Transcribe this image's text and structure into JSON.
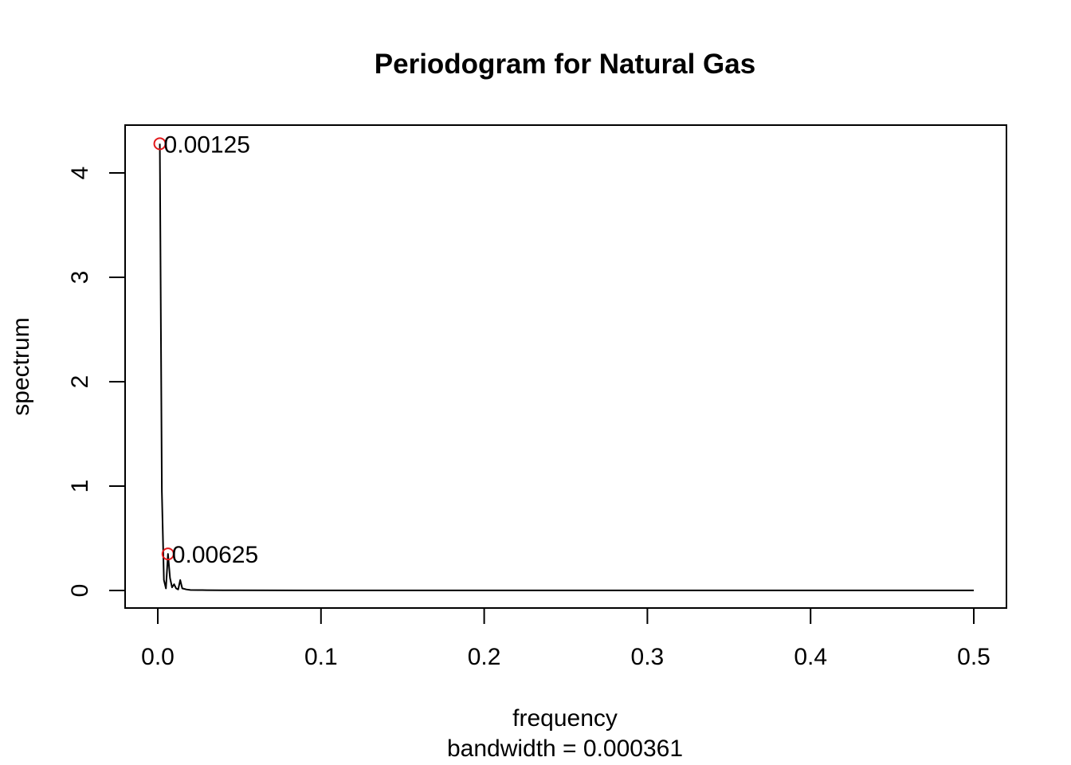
{
  "chart_data": {
    "type": "line",
    "title": "Periodogram for Natural Gas",
    "xlabel": "frequency",
    "sublabel": "bandwidth = 0.000361",
    "ylabel": "spectrum",
    "xlim": [
      0,
      0.5
    ],
    "ylim": [
      0,
      4.3
    ],
    "x_ticks": [
      0.0,
      0.1,
      0.2,
      0.3,
      0.4,
      0.5
    ],
    "x_tick_labels": [
      "0.0",
      "0.1",
      "0.2",
      "0.3",
      "0.4",
      "0.5"
    ],
    "y_ticks": [
      0,
      1,
      2,
      3,
      4
    ],
    "y_tick_labels": [
      "0",
      "1",
      "2",
      "3",
      "4"
    ],
    "grid": false,
    "legend": "none",
    "series": [
      {
        "color": "#000000",
        "x": [
          0.00125,
          0.0025,
          0.00375,
          0.005,
          0.00625,
          0.0075,
          0.00875,
          0.01,
          0.01125,
          0.0125,
          0.01375,
          0.015,
          0.0175,
          0.02,
          0.025,
          0.03,
          0.04,
          0.05,
          0.1,
          0.2,
          0.3,
          0.4,
          0.5
        ],
        "values": [
          4.28,
          0.95,
          0.1,
          0.02,
          0.35,
          0.12,
          0.03,
          0.06,
          0.02,
          0.01,
          0.1,
          0.02,
          0.01,
          0.005,
          0.004,
          0.003,
          0.002,
          0.002,
          0.001,
          0.001,
          0.001,
          0.001,
          0.001
        ]
      }
    ],
    "highlight_color": "#e31a1c",
    "highlights": [
      {
        "x": 0.00125,
        "y": 4.28,
        "label": "0.00125"
      },
      {
        "x": 0.00625,
        "y": 0.35,
        "label": "0.00625"
      }
    ]
  }
}
